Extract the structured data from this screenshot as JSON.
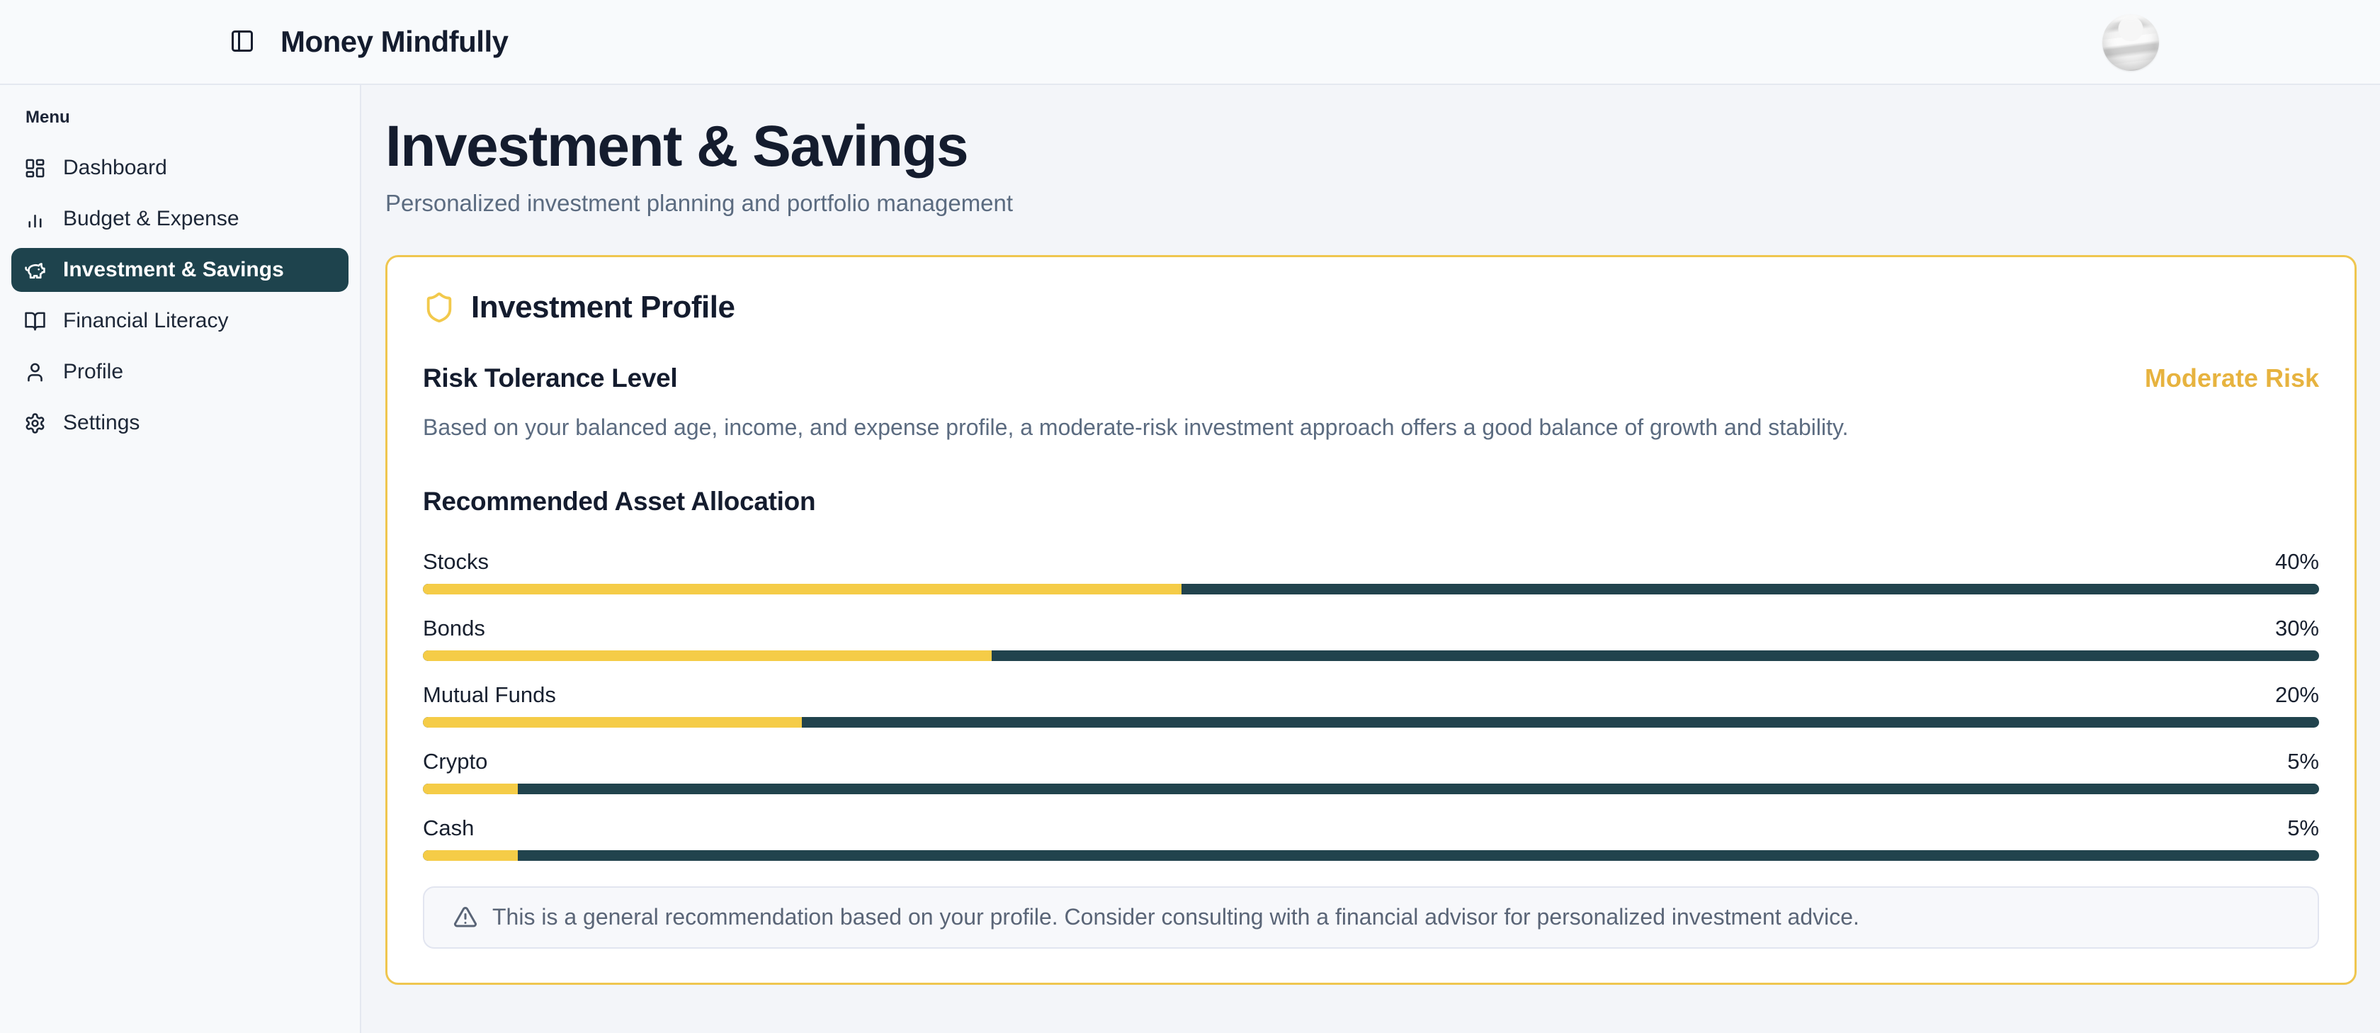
{
  "header": {
    "app_title": "Money Mindfully"
  },
  "sidebar": {
    "section_label": "Menu",
    "items": [
      {
        "label": "Dashboard",
        "icon": "dashboard-icon",
        "active": false
      },
      {
        "label": "Budget & Expense",
        "icon": "bar-chart-icon",
        "active": false
      },
      {
        "label": "Investment & Savings",
        "icon": "piggy-bank-icon",
        "active": true
      },
      {
        "label": "Financial Literacy",
        "icon": "book-open-icon",
        "active": false
      },
      {
        "label": "Profile",
        "icon": "user-icon",
        "active": false
      },
      {
        "label": "Settings",
        "icon": "gear-icon",
        "active": false
      }
    ]
  },
  "page": {
    "title": "Investment & Savings",
    "subtitle": "Personalized investment planning and portfolio management"
  },
  "card": {
    "title": "Investment Profile",
    "icon": "shield-icon",
    "risk": {
      "heading": "Risk Tolerance Level",
      "level": "Moderate Risk",
      "description": "Based on your balanced age, income, and expense profile, a moderate-risk investment approach offers a good balance of growth and stability."
    },
    "allocation": {
      "heading": "Recommended Asset Allocation",
      "items": [
        {
          "label": "Stocks",
          "percent": 40,
          "percent_label": "40%"
        },
        {
          "label": "Bonds",
          "percent": 30,
          "percent_label": "30%"
        },
        {
          "label": "Mutual Funds",
          "percent": 20,
          "percent_label": "20%"
        },
        {
          "label": "Crypto",
          "percent": 5,
          "percent_label": "5%"
        },
        {
          "label": "Cash",
          "percent": 5,
          "percent_label": "5%"
        }
      ]
    },
    "note": {
      "icon": "alert-triangle-icon",
      "text": "This is a general recommendation based on your profile. Consider consulting with a financial advisor for personalized investment advice."
    }
  },
  "colors": {
    "accent_gold_text": "#e7b33f",
    "bar_yellow": "#f5cc47",
    "bar_track_teal": "#21434d",
    "active_item_teal": "#1e434d",
    "heading_navy": "#141c2e",
    "card_border_gold": "#efc64f",
    "muted_text": "#5b6b80"
  }
}
